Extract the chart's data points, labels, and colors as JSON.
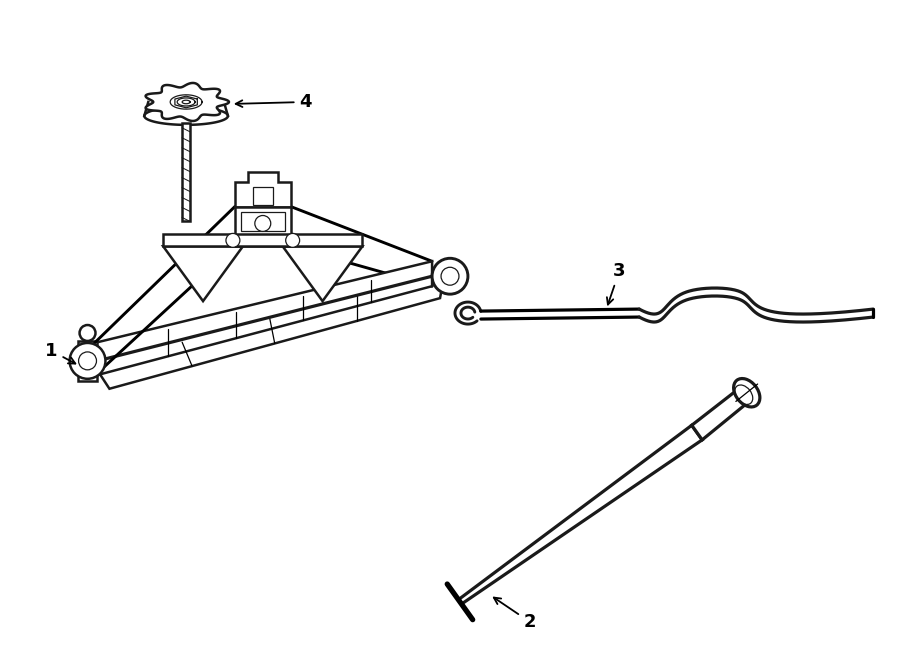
{
  "bg_color": "#ffffff",
  "line_color": "#1a1a1a",
  "lw_main": 1.8,
  "lw_thin": 0.9,
  "lw_thick": 2.5,
  "label_fontsize": 13,
  "figsize": [
    9.0,
    6.61
  ],
  "dpi": 100
}
